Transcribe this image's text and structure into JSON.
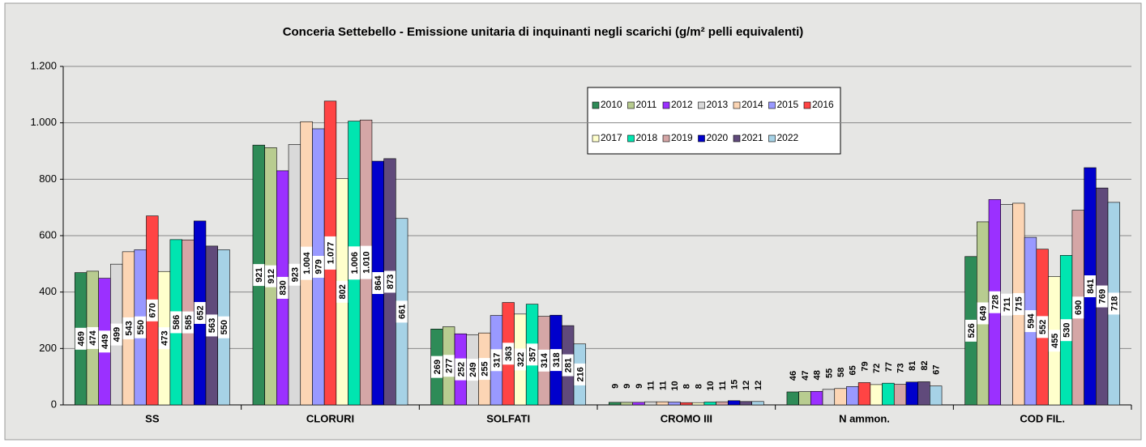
{
  "chart_data": {
    "type": "bar",
    "title": "Conceria Settebello - Emissione unitaria di inquinanti negli scarichi (g/m² pelli equivalenti)",
    "categories": [
      "SS",
      "CLORURI",
      "SOLFATI",
      "CROMO III",
      "N ammon.",
      "COD FIL."
    ],
    "ylim": [
      0,
      1200
    ],
    "yticks": [
      0,
      200,
      400,
      600,
      800,
      {
        "value": 1000,
        "label": "1.000"
      },
      {
        "value": 1200,
        "label": "1.200"
      }
    ],
    "grid": true,
    "legend": "top-right",
    "series": [
      {
        "name": "2010",
        "color": "#2e8b57",
        "values": [
          469,
          921,
          269,
          9,
          46,
          526
        ],
        "value_labels": [
          "469",
          "921",
          "269",
          "9",
          "46",
          "526"
        ]
      },
      {
        "name": "2011",
        "color": "#b8cc90",
        "values": [
          474,
          912,
          277,
          9,
          47,
          649
        ],
        "value_labels": [
          "474",
          "912",
          "277",
          "9",
          "47",
          "649"
        ]
      },
      {
        "name": "2012",
        "color": "#9b30ff",
        "values": [
          449,
          830,
          252,
          9,
          48,
          728
        ],
        "value_labels": [
          "449",
          "830",
          "252",
          "9",
          "48",
          "728"
        ]
      },
      {
        "name": "2013",
        "color": "#d9d9d9",
        "values": [
          499,
          923,
          249,
          11,
          55,
          711
        ],
        "value_labels": [
          "499",
          "923",
          "249",
          "11",
          "55",
          "711"
        ]
      },
      {
        "name": "2014",
        "color": "#fcd5b4",
        "values": [
          543,
          1004,
          255,
          11,
          58,
          715
        ],
        "value_labels": [
          "543",
          "1.004",
          "255",
          "11",
          "58",
          "715"
        ]
      },
      {
        "name": "2015",
        "color": "#9999ff",
        "values": [
          550,
          979,
          317,
          10,
          65,
          594
        ],
        "value_labels": [
          "550",
          "979",
          "317",
          "10",
          "65",
          "594"
        ]
      },
      {
        "name": "2016",
        "color": "#ff4444",
        "values": [
          670,
          1077,
          363,
          8,
          79,
          552
        ],
        "value_labels": [
          "670",
          "1.077",
          "363",
          "8",
          "79",
          "552"
        ]
      },
      {
        "name": "2017",
        "color": "#ffffcc",
        "values": [
          473,
          802,
          322,
          8,
          72,
          455
        ],
        "value_labels": [
          "473",
          "802",
          "322",
          "8",
          "72",
          "455"
        ]
      },
      {
        "name": "2018",
        "color": "#00e5b0",
        "values": [
          586,
          1006,
          357,
          10,
          77,
          530
        ],
        "value_labels": [
          "586",
          "1.006",
          "357",
          "10",
          "77",
          "530"
        ]
      },
      {
        "name": "2019",
        "color": "#d5a6a6",
        "values": [
          585,
          1010,
          314,
          11,
          73,
          690
        ],
        "value_labels": [
          "585",
          "1.010",
          "314",
          "11",
          "73",
          "690"
        ]
      },
      {
        "name": "2020",
        "color": "#0000cc",
        "values": [
          652,
          864,
          318,
          15,
          81,
          841
        ],
        "value_labels": [
          "652",
          "864",
          "318",
          "15",
          "81",
          "841"
        ]
      },
      {
        "name": "2021",
        "color": "#604a7b",
        "values": [
          563,
          873,
          281,
          12,
          82,
          769
        ],
        "value_labels": [
          "563",
          "873",
          "281",
          "12",
          "82",
          "769"
        ]
      },
      {
        "name": "2022",
        "color": "#a6d2e6",
        "values": [
          550,
          661,
          216,
          12,
          67,
          718
        ],
        "value_labels": [
          "550",
          "661",
          "216",
          "12",
          "67",
          "718"
        ]
      }
    ]
  }
}
